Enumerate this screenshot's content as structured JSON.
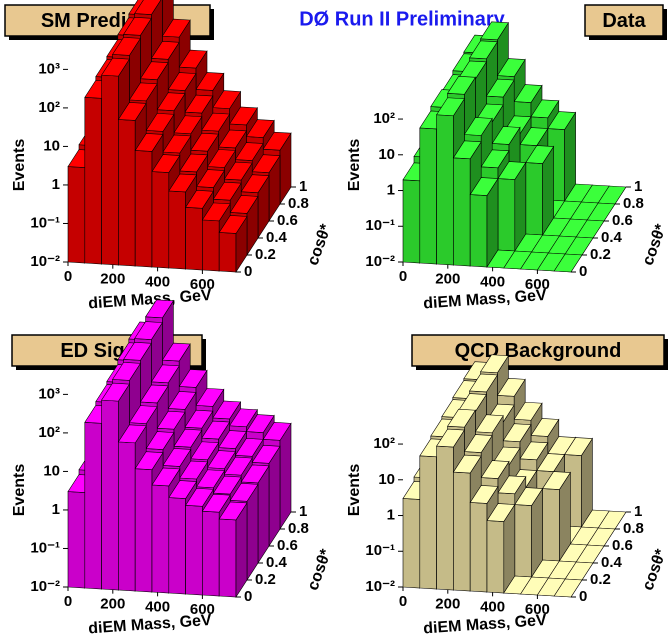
{
  "header": "DØ Run II Preliminary",
  "chart_data": [
    {
      "type": "lego",
      "title": "SM Prediction",
      "xlabel": "diEM Mass, GeV",
      "ylabel": "Events",
      "zlabel": "cosθ*",
      "log": true,
      "color": "#e80000",
      "xlim": [
        0,
        750
      ],
      "xticks": [
        0,
        200,
        400,
        600
      ],
      "xbins": [
        0,
        75,
        150,
        225,
        300,
        375,
        450,
        525,
        600,
        675,
        750
      ],
      "zlim": [
        0,
        1
      ],
      "zticks": [
        0,
        0.2,
        0.4,
        0.6,
        0.8,
        1
      ],
      "zbins": [
        0,
        0.2,
        0.4,
        0.6,
        0.8,
        1
      ],
      "ylim": [
        0.01,
        3000
      ],
      "yticks": [
        {
          "value": 0.01,
          "label": "10⁻²"
        },
        {
          "value": 0.1,
          "label": "10⁻¹"
        },
        1,
        10,
        {
          "value": 100,
          "label": "10²"
        },
        {
          "value": 1000,
          "label": "10³"
        }
      ],
      "values": [
        [
          3,
          200,
          800,
          60,
          10,
          3,
          1,
          0.4,
          0.2,
          0.1
        ],
        [
          4,
          250,
          1000,
          70,
          12,
          3.5,
          1.2,
          0.5,
          0.25,
          0.12
        ],
        [
          5,
          300,
          1200,
          90,
          15,
          4,
          1.5,
          0.6,
          0.3,
          0.15
        ],
        [
          6,
          400,
          1500,
          110,
          18,
          5,
          1.8,
          0.7,
          0.35,
          0.18
        ],
        [
          8,
          500,
          2000,
          150,
          25,
          7,
          2.5,
          1,
          0.5,
          0.25
        ]
      ]
    },
    {
      "type": "lego",
      "title": "Data",
      "xlabel": "diEM Mass, GeV",
      "ylabel": "Events",
      "zlabel": "cosθ*",
      "log": true,
      "color": "#33ee33",
      "xlim": [
        0,
        750
      ],
      "xticks": [
        0,
        200,
        400,
        600
      ],
      "xbins": [
        0,
        75,
        150,
        225,
        300,
        375,
        450,
        525,
        600,
        675,
        750
      ],
      "zlim": [
        0,
        1
      ],
      "zticks": [
        0,
        0.2,
        0.4,
        0.6,
        0.8,
        1
      ],
      "zbins": [
        0,
        0.2,
        0.4,
        0.6,
        0.8,
        1
      ],
      "ylim": [
        0.01,
        300
      ],
      "yticks": [
        {
          "value": 0.01,
          "label": "10⁻²"
        },
        {
          "value": 0.1,
          "label": "10⁻¹"
        },
        1,
        10,
        {
          "value": 100,
          "label": "10²"
        }
      ],
      "values": [
        [
          2,
          60,
          150,
          10,
          1,
          0,
          0,
          0,
          0,
          0
        ],
        [
          3,
          80,
          200,
          15,
          2,
          1,
          0,
          0,
          0,
          0
        ],
        [
          2,
          70,
          180,
          12,
          3,
          0,
          1,
          0,
          0,
          0
        ],
        [
          4,
          90,
          220,
          20,
          2,
          1,
          0,
          0,
          0,
          0
        ],
        [
          5,
          100,
          250,
          25,
          5,
          2,
          1,
          0,
          0,
          0
        ]
      ]
    },
    {
      "type": "lego",
      "title": "ED Signal",
      "xlabel": "diEM Mass, GeV",
      "ylabel": "Events",
      "zlabel": "cosθ*",
      "log": true,
      "color": "#ee00ee",
      "xlim": [
        0,
        750
      ],
      "xticks": [
        0,
        200,
        400,
        600
      ],
      "xbins": [
        0,
        75,
        150,
        225,
        300,
        375,
        450,
        525,
        600,
        675,
        750
      ],
      "zlim": [
        0,
        1
      ],
      "zticks": [
        0,
        0.2,
        0.4,
        0.6,
        0.8,
        1
      ],
      "zbins": [
        0,
        0.2,
        0.4,
        0.6,
        0.8,
        1
      ],
      "ylim": [
        0.01,
        3000
      ],
      "yticks": [
        {
          "value": 0.01,
          "label": "10⁻²"
        },
        {
          "value": 0.1,
          "label": "10⁻¹"
        },
        1,
        10,
        {
          "value": 100,
          "label": "10²"
        },
        {
          "value": 1000,
          "label": "10³"
        }
      ],
      "values": [
        [
          3,
          200,
          800,
          70,
          15,
          6,
          3,
          2,
          1.5,
          1
        ],
        [
          4,
          250,
          1000,
          80,
          18,
          7,
          3.5,
          2.2,
          1.6,
          1.1
        ],
        [
          5,
          300,
          1200,
          100,
          22,
          8,
          4,
          2.5,
          1.8,
          1.2
        ],
        [
          6,
          400,
          1500,
          120,
          26,
          9,
          5,
          3,
          2,
          1.4
        ],
        [
          8,
          500,
          2000,
          160,
          35,
          12,
          6,
          4,
          3,
          2
        ]
      ]
    },
    {
      "type": "lego",
      "title": "QCD Background",
      "xlabel": "diEM Mass, GeV",
      "ylabel": "Events",
      "zlabel": "cosθ*",
      "log": true,
      "color": "#e8dca0",
      "xlim": [
        0,
        750
      ],
      "xticks": [
        0,
        200,
        400,
        600
      ],
      "xbins": [
        0,
        75,
        150,
        225,
        300,
        375,
        450,
        525,
        600,
        675,
        750
      ],
      "zlim": [
        0,
        1
      ],
      "zticks": [
        0,
        0.2,
        0.4,
        0.6,
        0.8,
        1
      ],
      "zbins": [
        0,
        0.2,
        0.4,
        0.6,
        0.8,
        1
      ],
      "ylim": [
        0.01,
        300
      ],
      "yticks": [
        {
          "value": 0.01,
          "label": "10⁻²"
        },
        {
          "value": 0.1,
          "label": "10⁻¹"
        },
        1,
        10,
        {
          "value": 100,
          "label": "10²"
        }
      ],
      "values": [
        [
          3,
          50,
          100,
          20,
          3,
          1,
          0,
          0,
          0,
          0
        ],
        [
          4,
          60,
          120,
          25,
          5,
          2,
          1,
          0,
          0,
          0
        ],
        [
          3,
          70,
          110,
          30,
          4,
          1,
          0,
          1,
          0,
          0
        ],
        [
          5,
          80,
          130,
          20,
          6,
          2,
          1,
          0,
          0,
          0
        ],
        [
          6,
          90,
          150,
          35,
          8,
          3,
          1,
          1,
          0,
          0
        ]
      ]
    }
  ]
}
